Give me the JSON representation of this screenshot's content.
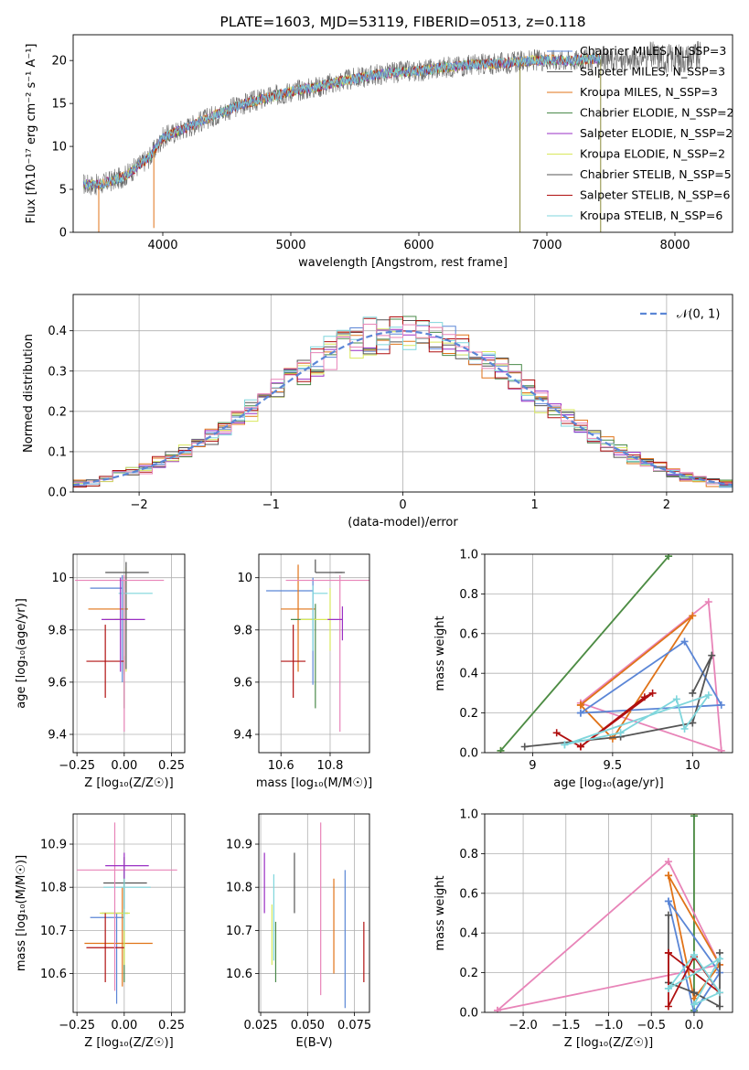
{
  "colors": {
    "blue": "#5b86d6",
    "orange": "#e07318",
    "green": "#4a8a4a",
    "purple": "#9a2fc4",
    "yellow": "#d9e85c",
    "dgray": "#555555",
    "red": "#b01010",
    "cyan": "#7fd6dc",
    "pink": "#e884b8",
    "grid": "#b0b0b0"
  },
  "chart_data": [
    {
      "id": "spectrum",
      "type": "line",
      "title": "PLATE=1603, MJD=53119, FIBERID=0513, z=0.118",
      "xlabel": "wavelength [Angstrom, rest frame]",
      "ylabel": "Flux [fλ10⁻¹⁷ erg cm⁻² s⁻¹ A⁻¹]",
      "xlim": [
        3300,
        8450
      ],
      "ylim": [
        0,
        23
      ],
      "xticks": [
        4000,
        5000,
        6000,
        7000,
        8000
      ],
      "yticks": [
        0,
        5,
        10,
        15,
        20
      ],
      "grid": false,
      "legend_placement": "top-right",
      "legend": [
        {
          "label": "Chabrier MILES, N_SSP=3",
          "color": "blue"
        },
        {
          "label": "Salpeter MILES, N_SSP=3",
          "color": "dgray"
        },
        {
          "label": "Kroupa MILES, N_SSP=3",
          "color": "orange"
        },
        {
          "label": "Chabrier ELODIE, N_SSP=2",
          "color": "green"
        },
        {
          "label": "Salpeter ELODIE, N_SSP=2",
          "color": "purple"
        },
        {
          "label": "Kroupa ELODIE, N_SSP=2",
          "color": "yellow"
        },
        {
          "label": "Chabrier STELIB, N_SSP=5",
          "color": "dgray"
        },
        {
          "label": "Salpeter STELIB, N_SSP=6",
          "color": "red"
        },
        {
          "label": "Kroupa STELIB, N_SSP=6",
          "color": "cyan"
        }
      ],
      "continuum": [
        [
          3380,
          5.6
        ],
        [
          3500,
          5.5
        ],
        [
          3700,
          6.5
        ],
        [
          3900,
          8.8
        ],
        [
          4000,
          11.0
        ],
        [
          4200,
          12.3
        ],
        [
          4400,
          13.6
        ],
        [
          4600,
          14.8
        ],
        [
          4800,
          15.6
        ],
        [
          5000,
          16.4
        ],
        [
          5200,
          16.9
        ],
        [
          5400,
          17.6
        ],
        [
          5600,
          18.2
        ],
        [
          5800,
          18.6
        ],
        [
          6000,
          18.8
        ],
        [
          6200,
          19.2
        ],
        [
          6400,
          19.5
        ],
        [
          6600,
          19.6
        ],
        [
          6800,
          19.9
        ],
        [
          7000,
          20.1
        ],
        [
          7200,
          20.0
        ],
        [
          7400,
          20.2
        ],
        [
          7600,
          19.9
        ],
        [
          7800,
          20.5
        ],
        [
          8000,
          20.2
        ],
        [
          8200,
          20.5
        ]
      ],
      "model_range": [
        3380,
        7420
      ],
      "drops": [
        [
          3500,
          0
        ],
        [
          3930,
          0.5
        ],
        [
          6790,
          0
        ],
        [
          7420,
          0
        ]
      ]
    },
    {
      "id": "residuals",
      "type": "histogram",
      "xlabel": "(data-model)/error",
      "ylabel": "Normed distribution",
      "xlim": [
        -2.5,
        2.5
      ],
      "ylim": [
        0,
        0.49
      ],
      "xticks": [
        -2,
        -1,
        0,
        1,
        2
      ],
      "yticks": [
        0.0,
        0.1,
        0.2,
        0.3,
        0.4
      ],
      "grid": true,
      "legend_placement": "top-right",
      "legend": [
        {
          "label": "𝒩(0, 1)",
          "color": "blue"
        }
      ],
      "bin_width": 0.1,
      "series_colors": [
        "blue",
        "orange",
        "green",
        "purple",
        "yellow",
        "dgray",
        "red",
        "cyan",
        "pink"
      ]
    },
    {
      "id": "age-vs-z",
      "type": "errorbar",
      "xlabel": "Z [log₁₀(Z/Z☉)]",
      "ylabel": "age  [log₁₀(age/yr)]",
      "xlim": [
        -0.27,
        0.32
      ],
      "ylim": [
        9.33,
        10.09
      ],
      "xticks": [
        -0.25,
        0.0,
        0.25
      ],
      "xticklabels": [
        "−0.25",
        "0.00",
        "0.25"
      ],
      "yticks": [
        9.4,
        9.6,
        9.8,
        10.0
      ],
      "grid": true,
      "points": [
        {
          "color": "blue",
          "x": -0.01,
          "xerr": [
            0.17,
            0.0
          ],
          "y": 9.96,
          "yerr": [
            0.36,
            0.05
          ]
        },
        {
          "color": "orange",
          "x": 0.0,
          "xerr": [
            0.19,
            0.02
          ],
          "y": 9.88,
          "yerr": [
            0.25,
            0.08
          ]
        },
        {
          "color": "green",
          "x": 0.0,
          "xerr": [
            0.05,
            0.02
          ],
          "y": 9.84,
          "yerr": [
            0.34,
            0.15
          ]
        },
        {
          "color": "yellow",
          "x": 0.01,
          "xerr": [
            0.11,
            0.02
          ],
          "y": 9.84,
          "yerr": [
            0.2,
            0.2
          ]
        },
        {
          "color": "dgray",
          "x": 0.01,
          "xerr": [
            0.11,
            0.12
          ],
          "y": 10.02,
          "yerr": [
            0.37,
            0.04
          ]
        },
        {
          "color": "red",
          "x": -0.1,
          "xerr": [
            0.1,
            0.1
          ],
          "y": 9.68,
          "yerr": [
            0.14,
            0.14
          ]
        },
        {
          "color": "cyan",
          "x": 0.0,
          "xerr": [
            0.03,
            0.15
          ],
          "y": 9.94,
          "yerr": [
            0.24,
            0.02
          ]
        },
        {
          "color": "pink",
          "x": 0.0,
          "xerr": [
            0.26,
            0.21
          ],
          "y": 9.99,
          "yerr": [
            0.58,
            0.02
          ]
        },
        {
          "color": "purple",
          "x": -0.02,
          "xerr": [
            0.1,
            0.13
          ],
          "y": 9.84,
          "yerr": [
            0.2,
            0.16
          ]
        }
      ]
    },
    {
      "id": "age-vs-mass",
      "type": "errorbar",
      "xlabel": "mass [log₁₀(M/M☉)]",
      "xlim": [
        10.51,
        10.96
      ],
      "ylim": [
        9.33,
        10.09
      ],
      "xticks": [
        10.6,
        10.8
      ],
      "yticks": [
        9.4,
        9.6,
        9.8,
        10.0
      ],
      "grid": true,
      "points": [
        {
          "color": "blue",
          "x": 10.73,
          "xerr": [
            0.19,
            0.0
          ],
          "y": 9.95,
          "yerr": [
            0.36,
            0.05
          ]
        },
        {
          "color": "orange",
          "x": 10.67,
          "xerr": [
            0.07,
            0.07
          ],
          "y": 9.88,
          "yerr": [
            0.24,
            0.17
          ]
        },
        {
          "color": "green",
          "x": 10.74,
          "xerr": [
            0.1,
            0.0
          ],
          "y": 9.84,
          "yerr": [
            0.34,
            0.06
          ]
        },
        {
          "color": "yellow",
          "x": 10.8,
          "xerr": [
            0.12,
            0.0
          ],
          "y": 9.84,
          "yerr": [
            0.12,
            0.12
          ]
        },
        {
          "color": "dgray",
          "x": 10.74,
          "xerr": [
            0.0,
            0.11
          ],
          "y": 10.02,
          "yerr": [
            0.0,
            0.05
          ]
        },
        {
          "color": "red",
          "x": 10.65,
          "xerr": [
            0.05,
            0.05
          ],
          "y": 9.68,
          "yerr": [
            0.14,
            0.14
          ]
        },
        {
          "color": "cyan",
          "x": 10.73,
          "xerr": [
            0.0,
            0.06
          ],
          "y": 9.94,
          "yerr": [
            0.22,
            0.03
          ]
        },
        {
          "color": "pink",
          "x": 10.84,
          "xerr": [
            0.22,
            0.12
          ],
          "y": 9.99,
          "yerr": [
            0.58,
            0.02
          ]
        },
        {
          "color": "purple",
          "x": 10.85,
          "xerr": [
            0.06,
            0.0
          ],
          "y": 9.84,
          "yerr": [
            0.08,
            0.05
          ]
        },
        {
          "color": "dgray",
          "x": 10.82,
          "xerr": [
            0.0,
            0.04
          ],
          "y": 10.02,
          "yerr": [
            0.0,
            0.0
          ]
        }
      ]
    },
    {
      "id": "weight-vs-age",
      "type": "line",
      "xlabel": "age  [log₁₀(age/yr)]",
      "ylabel": "mass weight",
      "xlim": [
        8.7,
        10.25
      ],
      "ylim": [
        0,
        1.0
      ],
      "xticks": [
        9.0,
        9.5,
        10.0
      ],
      "yticks": [
        0.0,
        0.2,
        0.4,
        0.6,
        0.8,
        1.0
      ],
      "grid": true,
      "series": [
        {
          "color": "yellow",
          "x": [
            8.8,
            9.85,
            8.8
          ],
          "y": [
            0.01,
            0.99,
            0.01
          ]
        },
        {
          "color": "green",
          "x": [
            8.8,
            9.85
          ],
          "y": [
            0.01,
            0.99
          ]
        },
        {
          "color": "pink",
          "x": [
            9.3,
            10.1,
            10.18,
            9.3
          ],
          "y": [
            0.25,
            0.76,
            0.01,
            0.25
          ]
        },
        {
          "color": "orange",
          "x": [
            9.3,
            9.5,
            10.0,
            9.3
          ],
          "y": [
            0.24,
            0.07,
            0.69,
            0.24
          ]
        },
        {
          "color": "blue",
          "x": [
            9.3,
            9.95,
            10.18,
            9.3
          ],
          "y": [
            0.2,
            0.56,
            0.24,
            0.2
          ]
        },
        {
          "color": "dgray",
          "x": [
            8.95,
            9.55,
            10.0,
            10.12,
            10.0
          ],
          "y": [
            0.03,
            0.08,
            0.15,
            0.49,
            0.3
          ]
        },
        {
          "color": "red",
          "x": [
            9.15,
            9.3,
            9.7,
            9.75,
            9.3
          ],
          "y": [
            0.1,
            0.03,
            0.28,
            0.3,
            0.03
          ]
        },
        {
          "color": "cyan",
          "x": [
            9.2,
            9.55,
            9.9,
            9.95,
            10.1,
            9.2
          ],
          "y": [
            0.04,
            0.1,
            0.27,
            0.12,
            0.29,
            0.04
          ]
        }
      ]
    },
    {
      "id": "mass-vs-z",
      "type": "errorbar",
      "xlabel": "Z [log₁₀(Z/Z☉)]",
      "ylabel": "mass [log₁₀(M/M☉)]",
      "xlim": [
        -0.27,
        0.32
      ],
      "ylim": [
        10.51,
        10.97
      ],
      "xticks": [
        -0.25,
        0.0,
        0.25
      ],
      "xticklabels": [
        "−0.25",
        "0.00",
        "0.25"
      ],
      "yticks": [
        10.6,
        10.7,
        10.8,
        10.9
      ],
      "grid": true,
      "points": [
        {
          "color": "blue",
          "x": -0.04,
          "xerr": [
            0.14,
            0.04
          ],
          "y": 10.73,
          "yerr": [
            0.2,
            0.01
          ]
        },
        {
          "color": "orange",
          "x": -0.01,
          "xerr": [
            0.2,
            0.16
          ],
          "y": 10.67,
          "yerr": [
            0.1,
            0.13
          ]
        },
        {
          "color": "green",
          "x": 0.0,
          "xerr": [
            0.12,
            0.02
          ],
          "y": 10.74,
          "yerr": [
            0.16,
            0.1
          ]
        },
        {
          "color": "yellow",
          "x": 0.0,
          "xerr": [
            0.13,
            0.03
          ],
          "y": 10.74,
          "yerr": [
            0.12,
            0.1
          ]
        },
        {
          "color": "dgray",
          "x": 0.0,
          "xerr": [
            0.11,
            0.12
          ],
          "y": 10.81,
          "yerr": [
            0.06,
            0.06
          ]
        },
        {
          "color": "red",
          "x": -0.1,
          "xerr": [
            0.1,
            0.1
          ],
          "y": 10.66,
          "yerr": [
            0.08,
            0.08
          ]
        },
        {
          "color": "cyan",
          "x": 0.0,
          "xerr": [
            0.11,
            0.14
          ],
          "y": 10.8,
          "yerr": [
            0.1,
            0.04
          ]
        },
        {
          "color": "pink",
          "x": -0.05,
          "xerr": [
            0.2,
            0.33
          ],
          "y": 10.84,
          "yerr": [
            0.28,
            0.11
          ]
        },
        {
          "color": "purple",
          "x": 0.0,
          "xerr": [
            0.1,
            0.13
          ],
          "y": 10.85,
          "yerr": [
            0.03,
            0.03
          ]
        }
      ]
    },
    {
      "id": "mass-vs-ebv",
      "type": "errorbar",
      "xlabel": "E(B-V)",
      "xlim": [
        0.024,
        0.083
      ],
      "ylim": [
        10.51,
        10.97
      ],
      "xticks": [
        0.025,
        0.05,
        0.075
      ],
      "xticklabels": [
        "0.025",
        "0.050",
        "0.075"
      ],
      "yticks": [
        10.6,
        10.7,
        10.8,
        10.9
      ],
      "grid": true,
      "points": [
        {
          "color": "purple",
          "x": 0.027,
          "y": 10.81,
          "yerr": [
            0.07,
            0.07
          ]
        },
        {
          "color": "yellow",
          "x": 0.031,
          "y": 10.69,
          "yerr": [
            0.07,
            0.07
          ]
        },
        {
          "color": "cyan",
          "x": 0.032,
          "y": 10.73,
          "yerr": [
            0.1,
            0.1
          ]
        },
        {
          "color": "green",
          "x": 0.033,
          "y": 10.65,
          "yerr": [
            0.07,
            0.07
          ]
        },
        {
          "color": "dgray",
          "x": 0.043,
          "y": 10.81,
          "yerr": [
            0.07,
            0.07
          ]
        },
        {
          "color": "pink",
          "x": 0.057,
          "y": 10.75,
          "yerr": [
            0.2,
            0.2
          ]
        },
        {
          "color": "orange",
          "x": 0.064,
          "y": 10.71,
          "yerr": [
            0.11,
            0.11
          ]
        },
        {
          "color": "blue",
          "x": 0.07,
          "y": 10.68,
          "yerr": [
            0.16,
            0.16
          ]
        },
        {
          "color": "red",
          "x": 0.08,
          "y": 10.65,
          "yerr": [
            0.07,
            0.07
          ]
        }
      ]
    },
    {
      "id": "weight-vs-z",
      "type": "line",
      "xlabel": "Z [log₁₀(Z/Z☉)]",
      "ylabel": "mass weight",
      "xlim": [
        -2.45,
        0.45
      ],
      "ylim": [
        0,
        1.0
      ],
      "xticks": [
        -2.0,
        -1.5,
        -1.0,
        -0.5,
        0.0
      ],
      "xticklabels": [
        "−2.0",
        "−1.5",
        "−1.0",
        "−0.5",
        "0.0"
      ],
      "yticks": [
        0.0,
        0.2,
        0.4,
        0.6,
        0.8,
        1.0
      ],
      "grid": true,
      "series": [
        {
          "color": "yellow",
          "x": [
            0.0,
            0.0,
            0.0
          ],
          "y": [
            0.0,
            1.0,
            0.0
          ]
        },
        {
          "color": "green",
          "x": [
            0.0,
            0.0
          ],
          "y": [
            0.01,
            0.99
          ]
        },
        {
          "color": "pink",
          "x": [
            -2.3,
            -0.3,
            0.3,
            -2.3
          ],
          "y": [
            0.01,
            0.76,
            0.24,
            0.01
          ]
        },
        {
          "color": "orange",
          "x": [
            -0.3,
            0.3,
            0.0,
            -0.3
          ],
          "y": [
            0.69,
            0.24,
            0.07,
            0.69
          ]
        },
        {
          "color": "blue",
          "x": [
            -0.3,
            0.3,
            0.0,
            -0.3
          ],
          "y": [
            0.56,
            0.2,
            0.0,
            0.56
          ]
        },
        {
          "color": "dgray",
          "x": [
            -0.3,
            -0.3,
            0.0,
            0.3,
            0.3
          ],
          "y": [
            0.49,
            0.15,
            0.1,
            0.03,
            0.3
          ]
        },
        {
          "color": "red",
          "x": [
            -0.3,
            -0.3,
            0.0,
            0.3,
            -0.3
          ],
          "y": [
            0.3,
            0.03,
            0.28,
            0.1,
            0.3
          ]
        },
        {
          "color": "cyan",
          "x": [
            -0.3,
            0.0,
            0.3,
            0.0,
            0.3,
            -0.3
          ],
          "y": [
            0.12,
            0.29,
            0.1,
            0.04,
            0.27,
            0.12
          ]
        }
      ]
    }
  ]
}
